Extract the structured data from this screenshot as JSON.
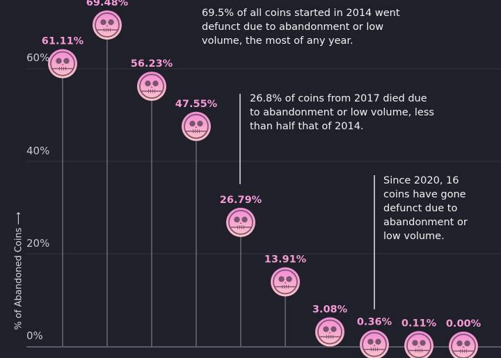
{
  "chart_data": {
    "type": "scatter",
    "style": "lollipop with skull markers",
    "ylabel": "% of Abandoned Coins",
    "ylim": [
      0,
      75
    ],
    "yticks": [
      "0%",
      "20%",
      "40%",
      "60%"
    ],
    "grid": true,
    "values": [
      61.11,
      69.48,
      56.23,
      47.55,
      26.79,
      13.91,
      3.08,
      0.36,
      0.11,
      0.0
    ],
    "labels": [
      "61.11%",
      "69.48%",
      "56.23%",
      "47.55%",
      "26.79%",
      "13.91%",
      "3.08%",
      "0.36%",
      "0.11%",
      "0.00%"
    ],
    "annotations": [
      {
        "text": "69.5% of all coins started in 2014 went defunct due to abandonment or low volume, the most of any year."
      },
      {
        "text": "26.8% of coins from 2017 died due to abandonment or low volume, less than half that of 2014."
      },
      {
        "text": "Since 2020, 16 coins have gone defunct due to abandonment or low volume."
      }
    ],
    "colors": {
      "background": "#1f2029",
      "label": "#f49ad6",
      "marker_top": "#f28ad8",
      "marker_bottom": "#fdc4c6",
      "marker_detail": "#7a5570"
    }
  }
}
